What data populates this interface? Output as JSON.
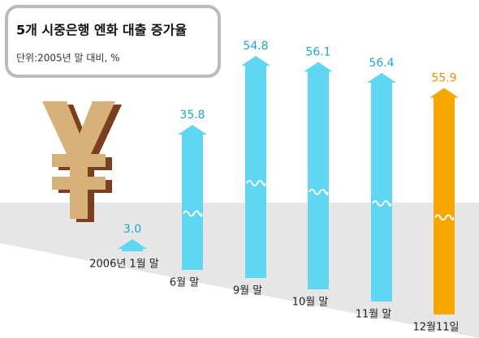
{
  "chart_data": {
    "type": "bar",
    "title": "5개 시중은행 엔화 대출 증가율",
    "subtitle": "단위:2005년 말 대비, %",
    "categories": [
      "2006년 1월 말",
      "6월 말",
      "9월 말",
      "10월 말",
      "11월 말",
      "12월11일"
    ],
    "values": [
      3.0,
      35.8,
      54.8,
      56.1,
      56.4,
      55.9
    ],
    "value_labels": [
      "3.0",
      "35.8",
      "54.8",
      "56.1",
      "56.4",
      "55.9"
    ],
    "colors": [
      "#5fd6f2",
      "#5fd6f2",
      "#5fd6f2",
      "#5fd6f2",
      "#5fd6f2",
      "#f7a800"
    ]
  }
}
